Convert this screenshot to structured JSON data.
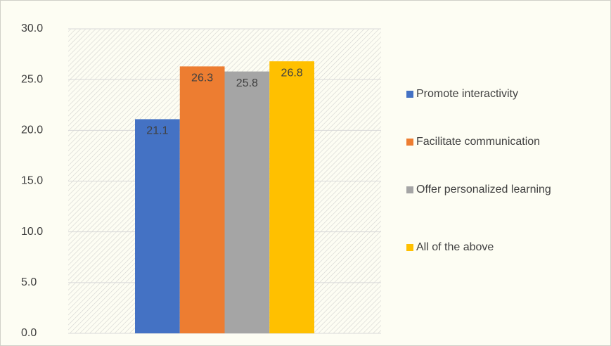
{
  "chart_data": {
    "type": "bar",
    "categories": [
      null
    ],
    "series": [
      {
        "name": "Promote interactivity",
        "color": "#4472c4",
        "values": [
          21.1
        ]
      },
      {
        "name": "Facilitate communication",
        "color": "#ed7d31",
        "values": [
          26.3
        ]
      },
      {
        "name": "Offer personalized learning",
        "color": "#a5a5a5",
        "values": [
          25.8
        ]
      },
      {
        "name": "All of the above",
        "color": "#ffc000",
        "values": [
          26.8
        ]
      }
    ],
    "ylim": [
      0,
      30
    ],
    "yticks": [
      {
        "value": 0,
        "label": "0.0"
      },
      {
        "value": 5,
        "label": "5.0"
      },
      {
        "value": 10,
        "label": "10.0"
      },
      {
        "value": 15,
        "label": "15.0"
      },
      {
        "value": 20,
        "label": "20.0"
      },
      {
        "value": 25,
        "label": "25.0"
      },
      {
        "value": 30,
        "label": "30.0"
      }
    ],
    "grid": true,
    "legend": "right"
  }
}
